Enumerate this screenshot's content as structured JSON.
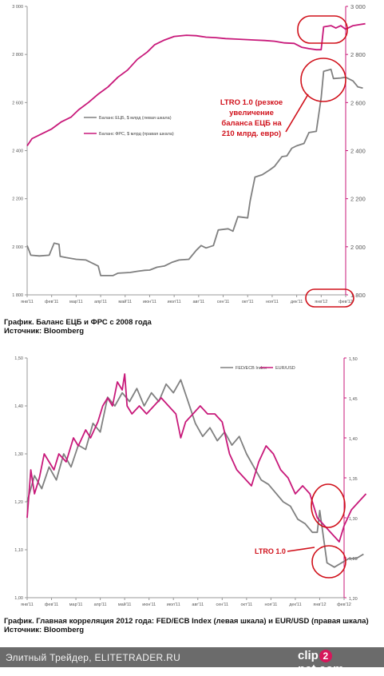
{
  "captions": {
    "chart1_line1": "График. Баланс ЕЦБ и ФРС с 2008 года",
    "chart1_line2": "Источник: Bloomberg",
    "chart2_line1": "График. Главная корреляция 2012 года: FED/ECB Index (левая шкала) и EUR/USD (правая шкала)",
    "chart2_line2": "Источник: Bloomberg"
  },
  "footer": {
    "site_text": "Элитный Трейдер, ELITETRADER.RU",
    "brand_pre": "clip",
    "brand_badge": "2",
    "brand_post": "net.com"
  },
  "colors": {
    "ecb": "#808080",
    "fed": "#c8197a",
    "annotation": "#d0101a",
    "axis": "#999999"
  },
  "chart_data": [
    {
      "type": "line",
      "x_categories": [
        "янв'11",
        "фев'11",
        "мар'11",
        "апр'11",
        "май'11",
        "июн'11",
        "июл'11",
        "авг'11",
        "сен'11",
        "окт'11",
        "ноя'11",
        "дек'11",
        "янв'12",
        "фев'12"
      ],
      "y_left": {
        "ticks": [
          "1 800",
          "2 000",
          "2 200",
          "2 400",
          "2 600",
          "2 800",
          "3 000"
        ],
        "ylim": [
          1800,
          3000
        ]
      },
      "y_right": {
        "ticks": [
          "1 800",
          "2 000",
          "2 200",
          "2 400",
          "2 600",
          "2 800",
          "3 000"
        ],
        "ylim": [
          1800,
          3000
        ]
      },
      "grid": false,
      "legend_position": "center-left",
      "series": [
        {
          "name": "Баланс ЕЦБ, $ млрд (левая шкала)",
          "axis": "left",
          "color": "#808080",
          "points": [
            [
              0,
              2005
            ],
            [
              0.15,
              1965
            ],
            [
              0.5,
              1962
            ],
            [
              0.9,
              1965
            ],
            [
              1.1,
              2015
            ],
            [
              1.3,
              2010
            ],
            [
              1.35,
              1960
            ],
            [
              1.6,
              1955
            ],
            [
              2.0,
              1948
            ],
            [
              2.4,
              1945
            ],
            [
              2.9,
              1920
            ],
            [
              3.0,
              1880
            ],
            [
              3.5,
              1880
            ],
            [
              3.7,
              1890
            ],
            [
              4.2,
              1893
            ],
            [
              4.5,
              1898
            ],
            [
              4.8,
              1902
            ],
            [
              5.0,
              1903
            ],
            [
              5.3,
              1915
            ],
            [
              5.6,
              1920
            ],
            [
              5.9,
              1935
            ],
            [
              6.2,
              1945
            ],
            [
              6.6,
              1948
            ],
            [
              6.9,
              1985
            ],
            [
              7.1,
              2005
            ],
            [
              7.3,
              1995
            ],
            [
              7.6,
              2005
            ],
            [
              7.8,
              2070
            ],
            [
              8.2,
              2075
            ],
            [
              8.4,
              2065
            ],
            [
              8.6,
              2125
            ],
            [
              9.0,
              2120
            ],
            [
              9.1,
              2190
            ],
            [
              9.3,
              2290
            ],
            [
              9.6,
              2300
            ],
            [
              9.9,
              2320
            ],
            [
              10.1,
              2335
            ],
            [
              10.4,
              2375
            ],
            [
              10.6,
              2378
            ],
            [
              10.8,
              2410
            ],
            [
              11.0,
              2420
            ],
            [
              11.3,
              2430
            ],
            [
              11.5,
              2475
            ],
            [
              11.8,
              2480
            ],
            [
              12.0,
              2620
            ],
            [
              12.1,
              2730
            ],
            [
              12.4,
              2738
            ],
            [
              12.5,
              2700
            ],
            [
              12.8,
              2702
            ],
            [
              13.0,
              2705
            ],
            [
              13.3,
              2690
            ],
            [
              13.5,
              2665
            ],
            [
              13.7,
              2660
            ]
          ]
        },
        {
          "name": "Баланс ФРС, $ млрд (правая шкала)",
          "axis": "right",
          "color": "#c8197a",
          "points": [
            [
              0,
              2420
            ],
            [
              0.2,
              2450
            ],
            [
              0.6,
              2470
            ],
            [
              1.0,
              2490
            ],
            [
              1.4,
              2520
            ],
            [
              1.8,
              2540
            ],
            [
              2.1,
              2570
            ],
            [
              2.5,
              2600
            ],
            [
              2.9,
              2635
            ],
            [
              3.3,
              2665
            ],
            [
              3.7,
              2705
            ],
            [
              4.1,
              2735
            ],
            [
              4.5,
              2780
            ],
            [
              4.9,
              2810
            ],
            [
              5.2,
              2840
            ],
            [
              5.6,
              2860
            ],
            [
              6.0,
              2875
            ],
            [
              6.5,
              2880
            ],
            [
              6.9,
              2878
            ],
            [
              7.3,
              2872
            ],
            [
              7.7,
              2870
            ],
            [
              8.1,
              2866
            ],
            [
              8.5,
              2864
            ],
            [
              8.9,
              2862
            ],
            [
              9.3,
              2860
            ],
            [
              9.7,
              2858
            ],
            [
              10.1,
              2855
            ],
            [
              10.5,
              2848
            ],
            [
              10.9,
              2846
            ],
            [
              11.2,
              2830
            ],
            [
              11.5,
              2824
            ],
            [
              11.8,
              2820
            ],
            [
              12.0,
              2820
            ],
            [
              12.1,
              2915
            ],
            [
              12.4,
              2920
            ],
            [
              12.6,
              2910
            ],
            [
              12.8,
              2920
            ],
            [
              13.0,
              2905
            ],
            [
              13.3,
              2920
            ],
            [
              13.6,
              2925
            ],
            [
              13.8,
              2928
            ]
          ]
        }
      ],
      "annotation": {
        "text_lines": [
          "LTRO 1.0 (резкое",
          "увеличение",
          "баланса ЕЦБ на",
          "210 млрд. евро)"
        ]
      }
    },
    {
      "type": "line",
      "x_categories": [
        "янв'11",
        "фев'11",
        "мар'11",
        "апр'11",
        "май'11",
        "июн'11",
        "июл'11",
        "авг'11",
        "сен'11",
        "окт'11",
        "ноя'11",
        "дек'11",
        "янв'12",
        "фев'12"
      ],
      "y_left": {
        "ticks": [
          "1,00",
          "1,10",
          "1,20",
          "1,30",
          "1,40",
          "1,50"
        ],
        "ylim": [
          1.0,
          1.55
        ]
      },
      "y_right": {
        "ticks": [
          "1,20",
          "1,25",
          "1,30",
          "1,35",
          "1,40",
          "1,45",
          "1,50"
        ],
        "ylim": [
          1.2,
          1.5
        ]
      },
      "grid": false,
      "legend_position": "top-right",
      "series": [
        {
          "name": "FED/ECB Index",
          "axis": "left",
          "color": "#808080",
          "points": [
            [
              0,
              1.22
            ],
            [
              0.3,
              1.28
            ],
            [
              0.6,
              1.25
            ],
            [
              0.9,
              1.3
            ],
            [
              1.2,
              1.27
            ],
            [
              1.5,
              1.33
            ],
            [
              1.8,
              1.3
            ],
            [
              2.1,
              1.35
            ],
            [
              2.4,
              1.34
            ],
            [
              2.7,
              1.4
            ],
            [
              3.0,
              1.38
            ],
            [
              3.3,
              1.46
            ],
            [
              3.6,
              1.44
            ],
            [
              3.9,
              1.47
            ],
            [
              4.2,
              1.45
            ],
            [
              4.5,
              1.48
            ],
            [
              4.8,
              1.44
            ],
            [
              5.1,
              1.47
            ],
            [
              5.4,
              1.45
            ],
            [
              5.7,
              1.49
            ],
            [
              6.0,
              1.47
            ],
            [
              6.3,
              1.5
            ],
            [
              6.6,
              1.45
            ],
            [
              6.9,
              1.4
            ],
            [
              7.2,
              1.37
            ],
            [
              7.5,
              1.39
            ],
            [
              7.8,
              1.36
            ],
            [
              8.1,
              1.38
            ],
            [
              8.4,
              1.35
            ],
            [
              8.7,
              1.37
            ],
            [
              9.0,
              1.33
            ],
            [
              9.3,
              1.3
            ],
            [
              9.6,
              1.27
            ],
            [
              9.9,
              1.26
            ],
            [
              10.2,
              1.24
            ],
            [
              10.5,
              1.22
            ],
            [
              10.8,
              1.21
            ],
            [
              11.1,
              1.18
            ],
            [
              11.4,
              1.17
            ],
            [
              11.7,
              1.15
            ],
            [
              11.9,
              1.15
            ],
            [
              12.0,
              1.2
            ],
            [
              12.3,
              1.08
            ],
            [
              12.6,
              1.07
            ],
            [
              12.9,
              1.08
            ],
            [
              13.2,
              1.09
            ],
            [
              13.5,
              1.09
            ],
            [
              13.8,
              1.1
            ]
          ]
        },
        {
          "name": "EUR/USD",
          "axis": "right",
          "color": "#c8197a",
          "points": [
            [
              0,
              1.3
            ],
            [
              0.15,
              1.36
            ],
            [
              0.3,
              1.33
            ],
            [
              0.5,
              1.35
            ],
            [
              0.7,
              1.38
            ],
            [
              0.9,
              1.37
            ],
            [
              1.1,
              1.36
            ],
            [
              1.3,
              1.38
            ],
            [
              1.6,
              1.37
            ],
            [
              1.9,
              1.4
            ],
            [
              2.1,
              1.39
            ],
            [
              2.4,
              1.41
            ],
            [
              2.6,
              1.4
            ],
            [
              2.9,
              1.42
            ],
            [
              3.1,
              1.44
            ],
            [
              3.3,
              1.45
            ],
            [
              3.5,
              1.44
            ],
            [
              3.7,
              1.47
            ],
            [
              3.9,
              1.46
            ],
            [
              4.0,
              1.48
            ],
            [
              4.1,
              1.44
            ],
            [
              4.3,
              1.43
            ],
            [
              4.6,
              1.44
            ],
            [
              4.9,
              1.43
            ],
            [
              5.2,
              1.44
            ],
            [
              5.5,
              1.45
            ],
            [
              5.8,
              1.44
            ],
            [
              6.1,
              1.43
            ],
            [
              6.3,
              1.4
            ],
            [
              6.5,
              1.42
            ],
            [
              6.8,
              1.43
            ],
            [
              7.1,
              1.44
            ],
            [
              7.4,
              1.43
            ],
            [
              7.7,
              1.43
            ],
            [
              8.0,
              1.42
            ],
            [
              8.3,
              1.38
            ],
            [
              8.6,
              1.36
            ],
            [
              8.9,
              1.35
            ],
            [
              9.2,
              1.34
            ],
            [
              9.5,
              1.37
            ],
            [
              9.8,
              1.39
            ],
            [
              10.1,
              1.38
            ],
            [
              10.4,
              1.36
            ],
            [
              10.7,
              1.35
            ],
            [
              11.0,
              1.33
            ],
            [
              11.3,
              1.34
            ],
            [
              11.6,
              1.33
            ],
            [
              11.9,
              1.3
            ],
            [
              12.2,
              1.29
            ],
            [
              12.5,
              1.28
            ],
            [
              12.8,
              1.27
            ],
            [
              13.0,
              1.29
            ],
            [
              13.3,
              1.31
            ],
            [
              13.6,
              1.32
            ],
            [
              13.9,
              1.33
            ]
          ]
        }
      ],
      "annotation": {
        "text": "LTRO 1.0"
      }
    }
  ]
}
